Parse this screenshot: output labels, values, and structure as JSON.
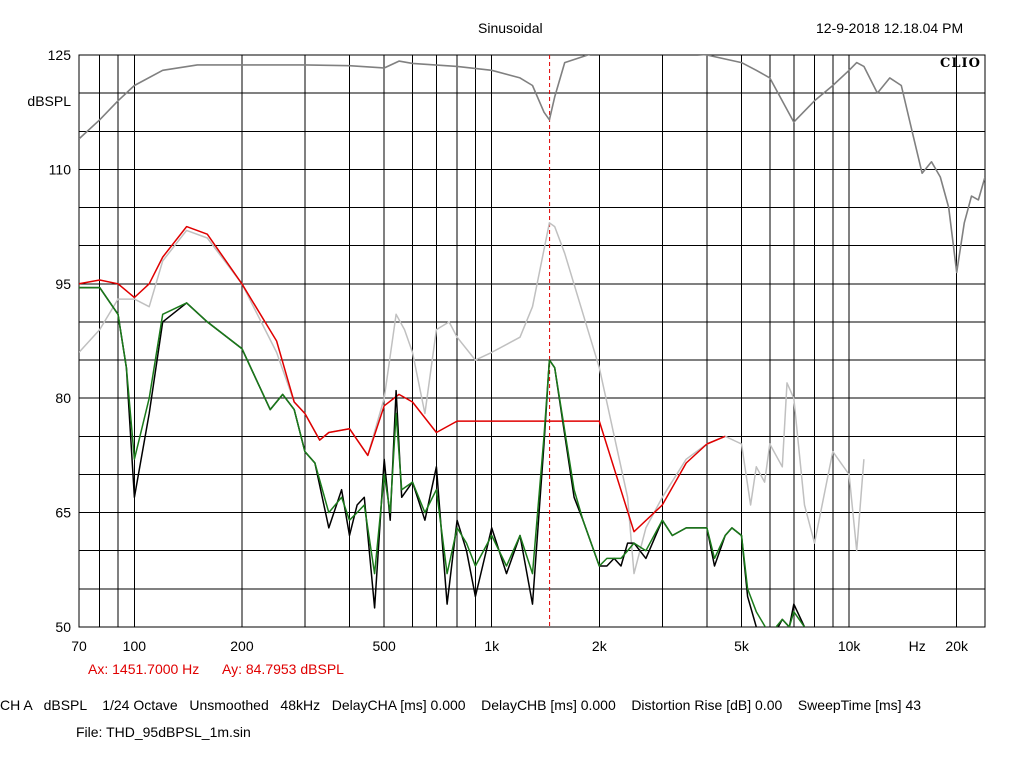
{
  "header": {
    "title": "Sinusoidal",
    "timestamp": "12-9-2018 12.18.04 PM",
    "brand": "CLIO"
  },
  "cursor": {
    "ax_text": "Ax: 1451.7000 Hz",
    "ay_text": "Ay: 84.7953 dBSPL",
    "freq": 1451.7,
    "level": 84.7953
  },
  "status": {
    "line": "CH A   dBSPL    1/24 Octave   Unsmoothed   48kHz   DelayCHA [ms] 0.000    DelayCHB [ms] 0.000    Distortion Rise [dB] 0.00    SweepTime [ms] 43",
    "file": "File: THD_95dBPSL_1m.sin"
  },
  "colors": {
    "response": "#808080",
    "red": "#e00000",
    "light": "#c0c0c0",
    "black": "#000000",
    "green": "#1a7a1a",
    "grid": "#000000"
  },
  "chart_data": {
    "type": "line",
    "xscale": "log",
    "xlim": [
      70,
      24000
    ],
    "ylim": [
      50,
      125
    ],
    "ylabel": "dBSPL",
    "xlabel": "Hz",
    "yticks": [
      125,
      110,
      95,
      80,
      65,
      50
    ],
    "xticks": [
      {
        "v": 70,
        "label": "70"
      },
      {
        "v": 100,
        "label": "100"
      },
      {
        "v": 200,
        "label": "200"
      },
      {
        "v": 500,
        "label": "500"
      },
      {
        "v": 1000,
        "label": "1k"
      },
      {
        "v": 2000,
        "label": "2k"
      },
      {
        "v": 5000,
        "label": "5k"
      },
      {
        "v": 10000,
        "label": "10k"
      },
      {
        "v": 20000,
        "label": "20k"
      }
    ],
    "series": [
      {
        "key": "response",
        "x": [
          70,
          80,
          90,
          100,
          120,
          150,
          200,
          300,
          400,
          500,
          550,
          600,
          800,
          1000,
          1200,
          1300,
          1400,
          1450,
          1500,
          1600,
          2000,
          3000,
          4000,
          5000,
          5500,
          6000,
          7000,
          8000,
          9000,
          10000,
          10500,
          11000,
          12000,
          13000,
          14000,
          15000,
          16000,
          17000,
          18000,
          19000,
          20000,
          21000,
          22000,
          23000,
          24000
        ],
        "y": [
          114,
          116.5,
          119,
          121,
          123,
          123.7,
          123.7,
          123.7,
          123.6,
          123.3,
          124.2,
          123.9,
          123.5,
          123,
          122,
          121,
          117.5,
          116.5,
          119.5,
          124,
          125.5,
          125.5,
          125,
          124,
          123,
          122,
          116.2,
          119,
          121,
          123,
          124,
          123.5,
          120,
          122,
          121,
          115,
          109.5,
          111,
          109,
          105,
          96.5,
          103,
          106.5,
          106,
          109
        ]
      },
      {
        "key": "red",
        "x": [
          70,
          80,
          90,
          100,
          110,
          120,
          140,
          160,
          200,
          250,
          280,
          300,
          330,
          350,
          400,
          450,
          500,
          550,
          600,
          700,
          800,
          900,
          1000,
          1200,
          1400,
          1450,
          1600,
          2000,
          2500,
          3000,
          3500,
          4000,
          4500
        ],
        "y": [
          95,
          95.5,
          95,
          93.2,
          95,
          98.5,
          102.5,
          101.5,
          95,
          87.5,
          79.5,
          78,
          74.5,
          75.5,
          76,
          72.5,
          79,
          80.5,
          79.5,
          75.5,
          77,
          77,
          77,
          77,
          77,
          77,
          77,
          77,
          62.5,
          66,
          71.5,
          74,
          75
        ]
      },
      {
        "key": "light",
        "x": [
          70,
          80,
          90,
          100,
          110,
          120,
          140,
          160,
          200,
          250,
          280,
          300,
          330,
          350,
          400,
          450,
          500,
          540,
          570,
          600,
          650,
          700,
          760,
          800,
          900,
          1000,
          1200,
          1300,
          1450,
          1500,
          1600,
          2000,
          2400,
          2500,
          2700,
          3000,
          3500,
          4000,
          4500,
          5000,
          5300,
          5500,
          5800,
          6000,
          6500,
          6700,
          7000,
          7500,
          8000,
          9000,
          10000,
          10500,
          11000
        ],
        "y": [
          86,
          89,
          93,
          93,
          92,
          98,
          102,
          101,
          95,
          86,
          79.5,
          78,
          74.5,
          75.5,
          76,
          72.5,
          80,
          91,
          89,
          86,
          78,
          89,
          90,
          88,
          85,
          86,
          88,
          92,
          103,
          102.5,
          99,
          84,
          67,
          57,
          63,
          67,
          72,
          74,
          75,
          74,
          66,
          71,
          69,
          74,
          71,
          82,
          80,
          66,
          61,
          73,
          70,
          60,
          72
        ]
      },
      {
        "key": "black",
        "x": [
          70,
          80,
          90,
          95,
          100,
          110,
          120,
          140,
          160,
          200,
          240,
          260,
          280,
          300,
          320,
          350,
          380,
          400,
          420,
          440,
          470,
          500,
          520,
          540,
          560,
          600,
          650,
          700,
          750,
          800,
          850,
          900,
          1000,
          1100,
          1200,
          1300,
          1400,
          1450,
          1500,
          1700,
          1800,
          2000,
          2100,
          2200,
          2300,
          2400,
          2500,
          2700,
          3000,
          3200,
          3500,
          4000,
          4200,
          4500,
          4700,
          5000,
          5200,
          5500,
          6000,
          6500,
          6800,
          7000,
          7500
        ],
        "y": [
          94.5,
          94.5,
          91,
          84,
          67,
          78,
          90,
          92.5,
          90,
          86.5,
          78.5,
          80.5,
          78.5,
          73,
          71.5,
          63,
          68,
          62,
          66,
          67,
          52.5,
          72,
          64,
          81,
          67,
          69,
          64,
          71,
          53,
          64,
          60,
          54,
          63,
          57,
          62,
          53,
          74,
          85,
          84,
          67,
          64,
          58,
          58,
          59,
          58,
          61,
          61,
          59,
          64,
          62,
          63,
          63,
          58,
          62,
          63,
          62,
          54,
          50,
          48,
          51,
          50,
          53,
          50
        ]
      },
      {
        "key": "green",
        "x": [
          70,
          80,
          90,
          95,
          100,
          110,
          120,
          140,
          160,
          200,
          240,
          260,
          280,
          300,
          320,
          350,
          380,
          400,
          420,
          440,
          470,
          500,
          520,
          540,
          560,
          600,
          650,
          700,
          750,
          800,
          850,
          900,
          1000,
          1100,
          1200,
          1300,
          1400,
          1450,
          1500,
          1700,
          1800,
          2000,
          2100,
          2200,
          2300,
          2400,
          2500,
          2700,
          3000,
          3200,
          3500,
          4000,
          4200,
          4500,
          4700,
          5000,
          5200,
          5500,
          6000,
          6500,
          6800,
          7000,
          7500
        ],
        "y": [
          94.5,
          94.5,
          91,
          84,
          72,
          80,
          91,
          92.5,
          90,
          86.5,
          78.5,
          80.5,
          78.5,
          73,
          71.5,
          65,
          67,
          64,
          65,
          66,
          57,
          70,
          65,
          78,
          68,
          69,
          65,
          68,
          57,
          63,
          61,
          58,
          62,
          58,
          62,
          57,
          75,
          85,
          84,
          68,
          64,
          58,
          59,
          59,
          59,
          60,
          61,
          60,
          64,
          62,
          63,
          63,
          59,
          62,
          63,
          62,
          55,
          52,
          49,
          51,
          50,
          52,
          50
        ]
      }
    ]
  }
}
